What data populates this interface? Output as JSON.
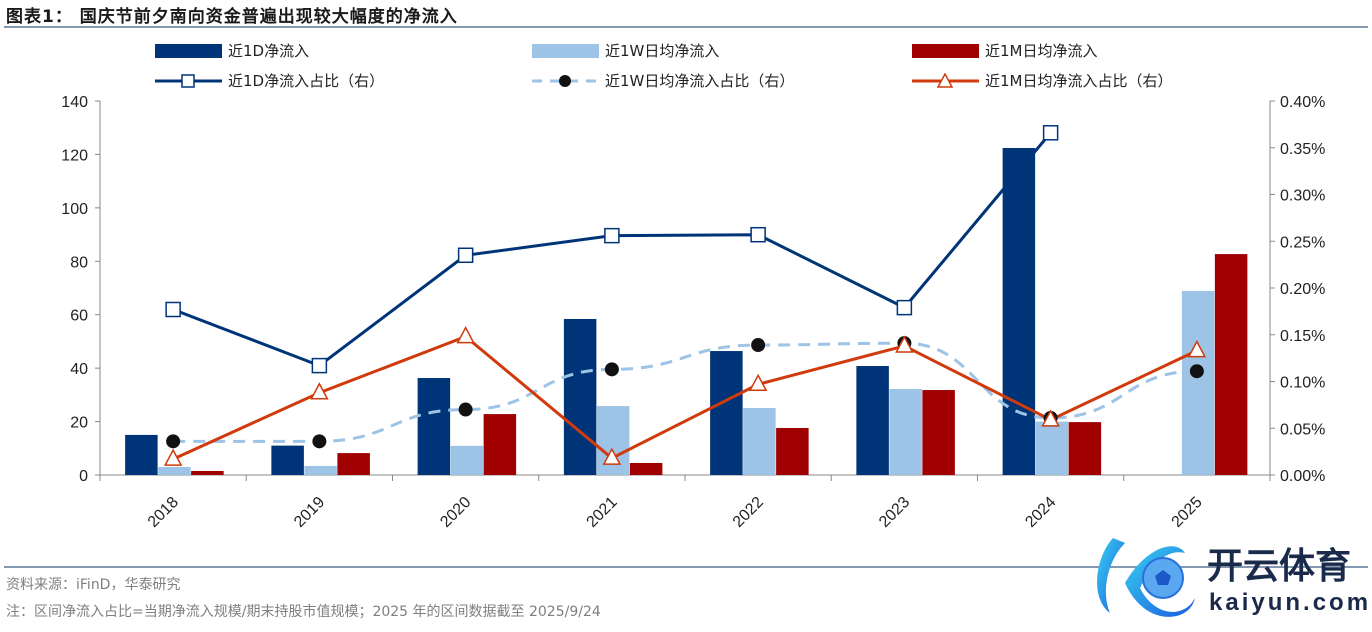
{
  "title": "图表1： 国庆节前夕南向资金普遍出现较大幅度的净流入",
  "footer": {
    "source": "资料来源：iFinD，华泰研究",
    "note": "注：区间净流入占比=当期净流入规模/期末持股市值规模；2025 年的区间数据截至 2025/9/24"
  },
  "logo": {
    "cn": "开云体育",
    "en": "kaiyun.com"
  },
  "colors": {
    "d1": "#003478",
    "w1": "#9dc3e6",
    "m1": "#a00000",
    "m1_line": "#d03a0c"
  },
  "chart_data": {
    "type": "bar+line",
    "categories": [
      "2018",
      "2019",
      "2020",
      "2021",
      "2022",
      "2023",
      "2024",
      "2025"
    ],
    "left_axis": {
      "ylim": [
        0,
        140
      ],
      "ticks": [
        "0",
        "20",
        "40",
        "60",
        "80",
        "100",
        "120",
        "140"
      ]
    },
    "right_axis": {
      "ylim": [
        0,
        0.4
      ],
      "ticks": [
        "0.00%",
        "0.05%",
        "0.10%",
        "0.15%",
        "0.20%",
        "0.25%",
        "0.30%",
        "0.35%",
        "0.40%"
      ]
    },
    "bar_series": [
      {
        "name": "近1D净流入",
        "values": [
          15,
          11,
          36.3,
          58.4,
          46.4,
          40.8,
          122.4,
          null
        ]
      },
      {
        "name": "近1W日均净流入",
        "values": [
          3,
          3.4,
          10.9,
          25.8,
          25.1,
          32.2,
          20,
          68.9
        ]
      },
      {
        "name": "近1M日均净流入",
        "values": [
          1.5,
          8.2,
          22.8,
          4.5,
          17.6,
          31.8,
          19.8,
          82.7
        ]
      }
    ],
    "line_series": [
      {
        "name": "近1D净流入占比（右）",
        "values": [
          0.177,
          0.117,
          0.235,
          0.256,
          0.257,
          0.179,
          0.366,
          null
        ]
      },
      {
        "name": "近1W日均净流入占比（右）",
        "values": [
          0.036,
          0.036,
          0.07,
          0.113,
          0.139,
          0.141,
          0.061,
          0.111
        ]
      },
      {
        "name": "近1M日均净流入占比（右）",
        "values": [
          0.017,
          0.088,
          0.148,
          0.018,
          0.097,
          0.138,
          0.059,
          0.133
        ]
      }
    ],
    "legend_placement": "top"
  }
}
